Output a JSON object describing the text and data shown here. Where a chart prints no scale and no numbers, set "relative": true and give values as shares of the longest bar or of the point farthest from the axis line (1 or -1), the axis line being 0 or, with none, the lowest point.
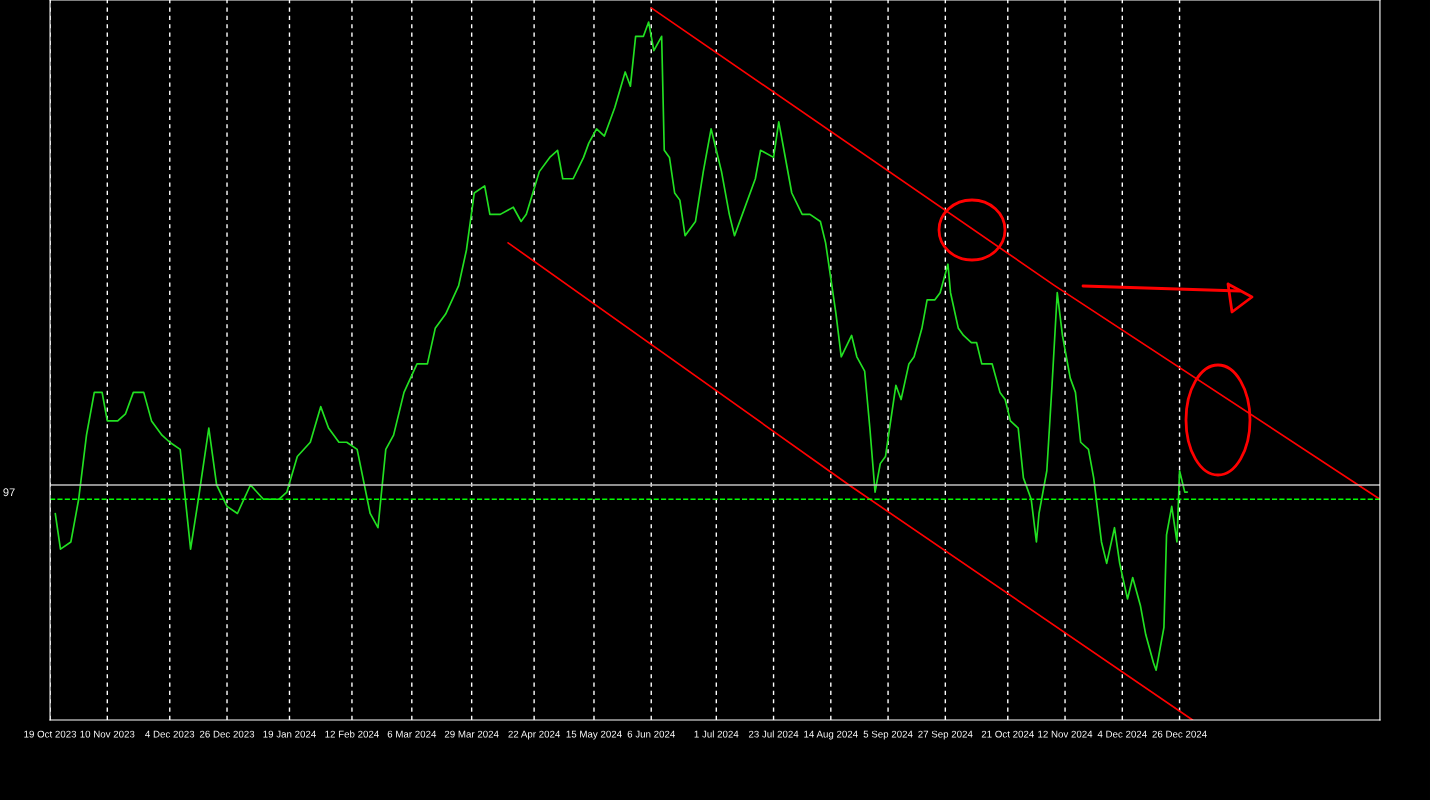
{
  "chart_data": {
    "type": "line",
    "relative": true,
    "grid": "x",
    "xlim": [
      "2023-10-19",
      "2025-03-13"
    ],
    "xticks": [
      {
        "value": "2023-10-19",
        "label": "19 Oct 2023"
      },
      {
        "value": "2023-11-10",
        "label": "10 Nov 2023"
      },
      {
        "value": "2023-12-04",
        "label": "4 Dec 2023"
      },
      {
        "value": "2023-12-26",
        "label": "26 Dec 2023"
      },
      {
        "value": "2024-01-19",
        "label": "19 Jan 2024"
      },
      {
        "value": "2024-02-12",
        "label": "12 Feb 2024"
      },
      {
        "value": "2024-03-06",
        "label": "6 Mar 2024"
      },
      {
        "value": "2024-03-29",
        "label": "29 Mar 2024"
      },
      {
        "value": "2024-04-22",
        "label": "22 Apr 2024"
      },
      {
        "value": "2024-05-15",
        "label": "15 May 2024"
      },
      {
        "value": "2024-06-06",
        "label": "6 Jun 2024"
      },
      {
        "value": "2024-07-01",
        "label": "1 Jul 2024"
      },
      {
        "value": "2024-07-23",
        "label": "23 Jul 2024"
      },
      {
        "value": "2024-08-14",
        "label": "14 Aug 2024"
      },
      {
        "value": "2024-09-05",
        "label": "5 Sep 2024"
      },
      {
        "value": "2024-09-27",
        "label": "27 Sep 2024"
      },
      {
        "value": "2024-10-21",
        "label": "21 Oct 2024"
      },
      {
        "value": "2024-11-12",
        "label": "12 Nov 2024"
      },
      {
        "value": "2024-12-04",
        "label": "4 Dec 2024"
      },
      {
        "value": "2024-12-26",
        "label": "26 Dec 2024"
      }
    ],
    "annotations": [
      "97"
    ],
    "ref_lines": [
      {
        "axis": "y",
        "value": 0.33,
        "color": "#c0c0c0",
        "line_style": "solid"
      },
      {
        "axis": "y",
        "value": 0.31,
        "color": "#00ff00",
        "line_style": "dashed"
      }
    ],
    "series": [
      {
        "color": "#22e022",
        "line_style": "solid",
        "x": [
          "2023-10-21",
          "2023-10-23",
          "2023-10-27",
          "2023-10-30",
          "2023-11-02",
          "2023-11-05",
          "2023-11-08",
          "2023-11-10",
          "2023-11-14",
          "2023-11-17",
          "2023-11-20",
          "2023-11-24",
          "2023-11-27",
          "2023-12-01",
          "2023-12-04",
          "2023-12-08",
          "2023-12-12",
          "2023-12-15",
          "2023-12-19",
          "2023-12-22",
          "2023-12-26",
          "2023-12-30",
          "2024-01-04",
          "2024-01-09",
          "2024-01-15",
          "2024-01-18",
          "2024-01-22",
          "2024-01-27",
          "2024-01-31",
          "2024-02-03",
          "2024-02-07",
          "2024-02-10",
          "2024-02-14",
          "2024-02-19",
          "2024-02-22",
          "2024-02-25",
          "2024-02-28",
          "2024-03-03",
          "2024-03-08",
          "2024-03-12",
          "2024-03-15",
          "2024-03-19",
          "2024-03-24",
          "2024-03-27",
          "2024-03-30",
          "2024-04-03",
          "2024-04-05",
          "2024-04-09",
          "2024-04-14",
          "2024-04-17",
          "2024-04-19",
          "2024-04-24",
          "2024-04-28",
          "2024-05-01",
          "2024-05-03",
          "2024-05-07",
          "2024-05-11",
          "2024-05-13",
          "2024-05-16",
          "2024-05-19",
          "2024-05-23",
          "2024-05-27",
          "2024-05-29",
          "2024-05-31",
          "2024-06-03",
          "2024-06-05",
          "2024-06-07",
          "2024-06-10",
          "2024-06-11",
          "2024-06-13",
          "2024-06-15",
          "2024-06-17",
          "2024-06-19",
          "2024-06-23",
          "2024-06-26",
          "2024-06-29",
          "2024-07-01",
          "2024-07-03",
          "2024-07-06",
          "2024-07-08",
          "2024-07-11",
          "2024-07-16",
          "2024-07-18",
          "2024-07-23",
          "2024-07-25",
          "2024-07-27",
          "2024-07-30",
          "2024-08-03",
          "2024-08-06",
          "2024-08-10",
          "2024-08-12",
          "2024-08-16",
          "2024-08-18",
          "2024-08-22",
          "2024-08-24",
          "2024-08-27",
          "2024-08-29",
          "2024-08-31",
          "2024-09-02",
          "2024-09-04",
          "2024-09-06",
          "2024-09-08",
          "2024-09-10",
          "2024-09-13",
          "2024-09-15",
          "2024-09-18",
          "2024-09-20",
          "2024-09-23",
          "2024-09-25",
          "2024-09-28",
          "2024-09-29",
          "2024-10-02",
          "2024-10-04",
          "2024-10-07",
          "2024-10-09",
          "2024-10-11",
          "2024-10-15",
          "2024-10-18",
          "2024-10-20",
          "2024-10-22",
          "2024-10-25",
          "2024-10-27",
          "2024-10-30",
          "2024-11-01",
          "2024-11-02",
          "2024-11-05",
          "2024-11-07",
          "2024-11-09",
          "2024-11-11",
          "2024-11-14",
          "2024-11-16",
          "2024-11-18",
          "2024-11-21",
          "2024-11-23",
          "2024-11-26",
          "2024-11-28",
          "2024-12-01",
          "2024-12-03",
          "2024-12-06",
          "2024-12-08",
          "2024-12-11",
          "2024-12-13",
          "2024-12-16",
          "2024-12-17",
          "2024-12-20",
          "2024-12-21",
          "2024-12-23",
          "2024-12-25",
          "2024-12-26",
          "2024-12-28",
          "2024-12-29"
        ],
        "values": [
          0.29,
          0.24,
          0.25,
          0.31,
          0.4,
          0.46,
          0.46,
          0.42,
          0.42,
          0.43,
          0.46,
          0.46,
          0.42,
          0.4,
          0.39,
          0.38,
          0.24,
          0.31,
          0.41,
          0.33,
          0.3,
          0.29,
          0.33,
          0.31,
          0.31,
          0.32,
          0.37,
          0.39,
          0.44,
          0.41,
          0.39,
          0.39,
          0.38,
          0.29,
          0.27,
          0.38,
          0.4,
          0.46,
          0.5,
          0.5,
          0.55,
          0.57,
          0.61,
          0.66,
          0.74,
          0.75,
          0.71,
          0.71,
          0.72,
          0.7,
          0.71,
          0.77,
          0.79,
          0.8,
          0.76,
          0.76,
          0.79,
          0.81,
          0.83,
          0.82,
          0.86,
          0.91,
          0.89,
          0.96,
          0.96,
          0.98,
          0.94,
          0.96,
          0.8,
          0.79,
          0.74,
          0.73,
          0.68,
          0.7,
          0.77,
          0.83,
          0.8,
          0.77,
          0.71,
          0.68,
          0.71,
          0.76,
          0.8,
          0.79,
          0.84,
          0.8,
          0.74,
          0.71,
          0.71,
          0.7,
          0.67,
          0.57,
          0.51,
          0.54,
          0.51,
          0.49,
          0.41,
          0.32,
          0.36,
          0.37,
          0.42,
          0.47,
          0.45,
          0.5,
          0.51,
          0.55,
          0.59,
          0.59,
          0.6,
          0.64,
          0.6,
          0.55,
          0.54,
          0.53,
          0.53,
          0.5,
          0.5,
          0.46,
          0.45,
          0.42,
          0.41,
          0.34,
          0.31,
          0.25,
          0.29,
          0.35,
          0.47,
          0.6,
          0.54,
          0.48,
          0.46,
          0.39,
          0.38,
          0.34,
          0.25,
          0.22,
          0.27,
          0.22,
          0.17,
          0.2,
          0.16,
          0.12,
          0.08,
          0.07,
          0.13,
          0.26,
          0.3,
          0.25,
          0.35,
          0.32,
          0.32
        ]
      },
      {
        "color": "#ff0000",
        "line_style": "solid",
        "x": [
          "2024-04-12",
          "2024-08-21",
          "2024-12-31"
        ],
        "values": [
          0.67,
          0.33,
          0.0
        ]
      },
      {
        "color": "#ff0000",
        "line_style": "solid",
        "x": [
          "2024-06-06",
          "2024-11-08",
          "2025-03-13"
        ],
        "values": [
          1.0,
          0.61,
          0.31
        ]
      }
    ]
  }
}
